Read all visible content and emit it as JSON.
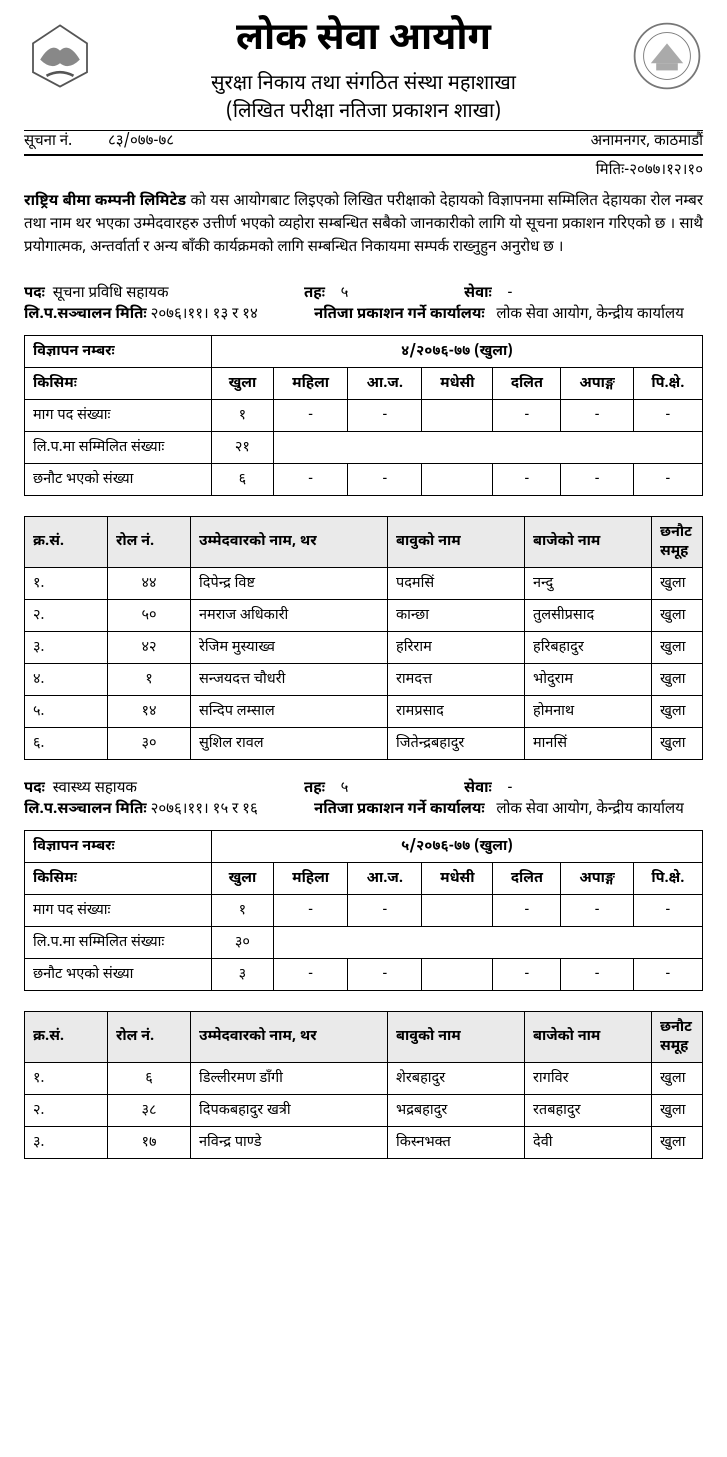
{
  "header": {
    "main_title": "लोक सेवा आयोग",
    "sub1": "सुरक्षा निकाय तथा संगठित संस्था महाशाखा",
    "sub2": "(लिखित परीक्षा नतिजा प्रकाशन शाखा)",
    "notice_label": "सूचना नं.",
    "notice_no": "८३/०७७-७८",
    "location": "अनामनगर, काठमाडौं",
    "date_label": "मितिः-",
    "date": "२०७७।१२।१०"
  },
  "body": {
    "org_bold": "राष्ट्रिय बीमा कम्पनी लिमिटेड",
    "para": " को यस आयोगबाट लिइएको लिखित परीक्षाको देहायको विज्ञापनमा सम्मिलित देहायका रोल नम्बर तथा नाम थर भएका उम्मेदवारहरु उत्तीर्ण भएको व्यहोरा सम्बन्धित सबैको जानकारीको लागि यो सूचना प्रकाशन गरिएको छ । साथै प्रयोगात्मक, अन्तर्वार्ता र अन्य बाँकी कार्यक्रमको लागि सम्बन्धित निकायमा सम्पर्क राख्नुहुन अनुरोध छ ।"
  },
  "labels": {
    "post": "पदः",
    "level": "तहः",
    "service": "सेवाः",
    "exam_date": "लि.प.सञ्चालन मितिः",
    "publishing_office": "नतिजा प्रकाशन गर्ने कार्यालयः",
    "publishing_office_value": "लोक सेवा आयोग, केन्द्रीय कार्यालय",
    "adv_no": "विज्ञापन नम्बरः",
    "type": "किसिमः",
    "demand": "माग पद संख्याः",
    "appeared": "लि.प.मा सम्मिलित संख्याः",
    "selected": "छनौट भएको संख्या",
    "type_cols": [
      "खुला",
      "महिला",
      "आ.ज.",
      "मधेसी",
      "दलित",
      "अपाङ्ग",
      "पि.क्षे."
    ],
    "result_heads": [
      "क्र.सं.",
      "रोल नं.",
      "उम्मेदवारको नाम, थर",
      "बावुको नाम",
      "बाजेको नाम",
      "छनौट समूह"
    ]
  },
  "sections": [
    {
      "post": "सूचना प्रविधि सहायक",
      "level": "५",
      "service": "-",
      "exam_date": "२०७६।११। १३ र १४",
      "adv_no": "४/२०७६-७७ (खुला)",
      "counts": {
        "demand": [
          "१",
          "-",
          "-",
          "",
          "-",
          "-",
          "-"
        ],
        "appeared": [
          "२१",
          "",
          "",
          "",
          "",
          "",
          ""
        ],
        "selected": [
          "६",
          "-",
          "-",
          "",
          "-",
          "-",
          "-"
        ]
      },
      "results": [
        {
          "sn": "१.",
          "roll": "४४",
          "name": "दिपेन्द्र विष्ट",
          "father": "पदमसिं",
          "grand": "नन्दु",
          "group": "खुला"
        },
        {
          "sn": "२.",
          "roll": "५०",
          "name": "नमराज अधिकारी",
          "father": "कान्छा",
          "grand": "तुलसीप्रसाद",
          "group": "खुला"
        },
        {
          "sn": "३.",
          "roll": "४२",
          "name": "रेजिम मुस्याख्व",
          "father": "हरिराम",
          "grand": "हरिबहादुर",
          "group": "खुला"
        },
        {
          "sn": "४.",
          "roll": "१",
          "name": "सन्जयदत्त चौधरी",
          "father": "रामदत्त",
          "grand": "भोदुराम",
          "group": "खुला"
        },
        {
          "sn": "५.",
          "roll": "१४",
          "name": "सन्दिप लम्साल",
          "father": "रामप्रसाद",
          "grand": "होमनाथ",
          "group": "खुला"
        },
        {
          "sn": "६.",
          "roll": "३०",
          "name": "सुशिल रावल",
          "father": "जितेन्द्रबहादुर",
          "grand": "मानसिं",
          "group": "खुला"
        }
      ]
    },
    {
      "post": "स्वास्थ्य सहायक",
      "level": "५",
      "service": "-",
      "exam_date": "२०७६।११। १५ र १६",
      "adv_no": "५/२०७६-७७ (खुला)",
      "counts": {
        "demand": [
          "१",
          "-",
          "-",
          "",
          "-",
          "-",
          "-"
        ],
        "appeared": [
          "३०",
          "",
          "",
          "",
          "",
          "",
          ""
        ],
        "selected": [
          "३",
          "-",
          "-",
          "",
          "-",
          "-",
          "-"
        ]
      },
      "results": [
        {
          "sn": "१.",
          "roll": "६",
          "name": "डिल्लीरमण डाँगी",
          "father": "शेरबहादुर",
          "grand": "रागविर",
          "group": "खुला"
        },
        {
          "sn": "२.",
          "roll": "३८",
          "name": "दिपकबहादुर खत्री",
          "father": "भद्रबहादुर",
          "grand": "रतबहादुर",
          "group": "खुला"
        },
        {
          "sn": "३.",
          "roll": "१७",
          "name": "नविन्द्र पाण्डे",
          "father": "किस्नभक्त",
          "grand": "देवी",
          "group": "खुला"
        }
      ]
    }
  ]
}
